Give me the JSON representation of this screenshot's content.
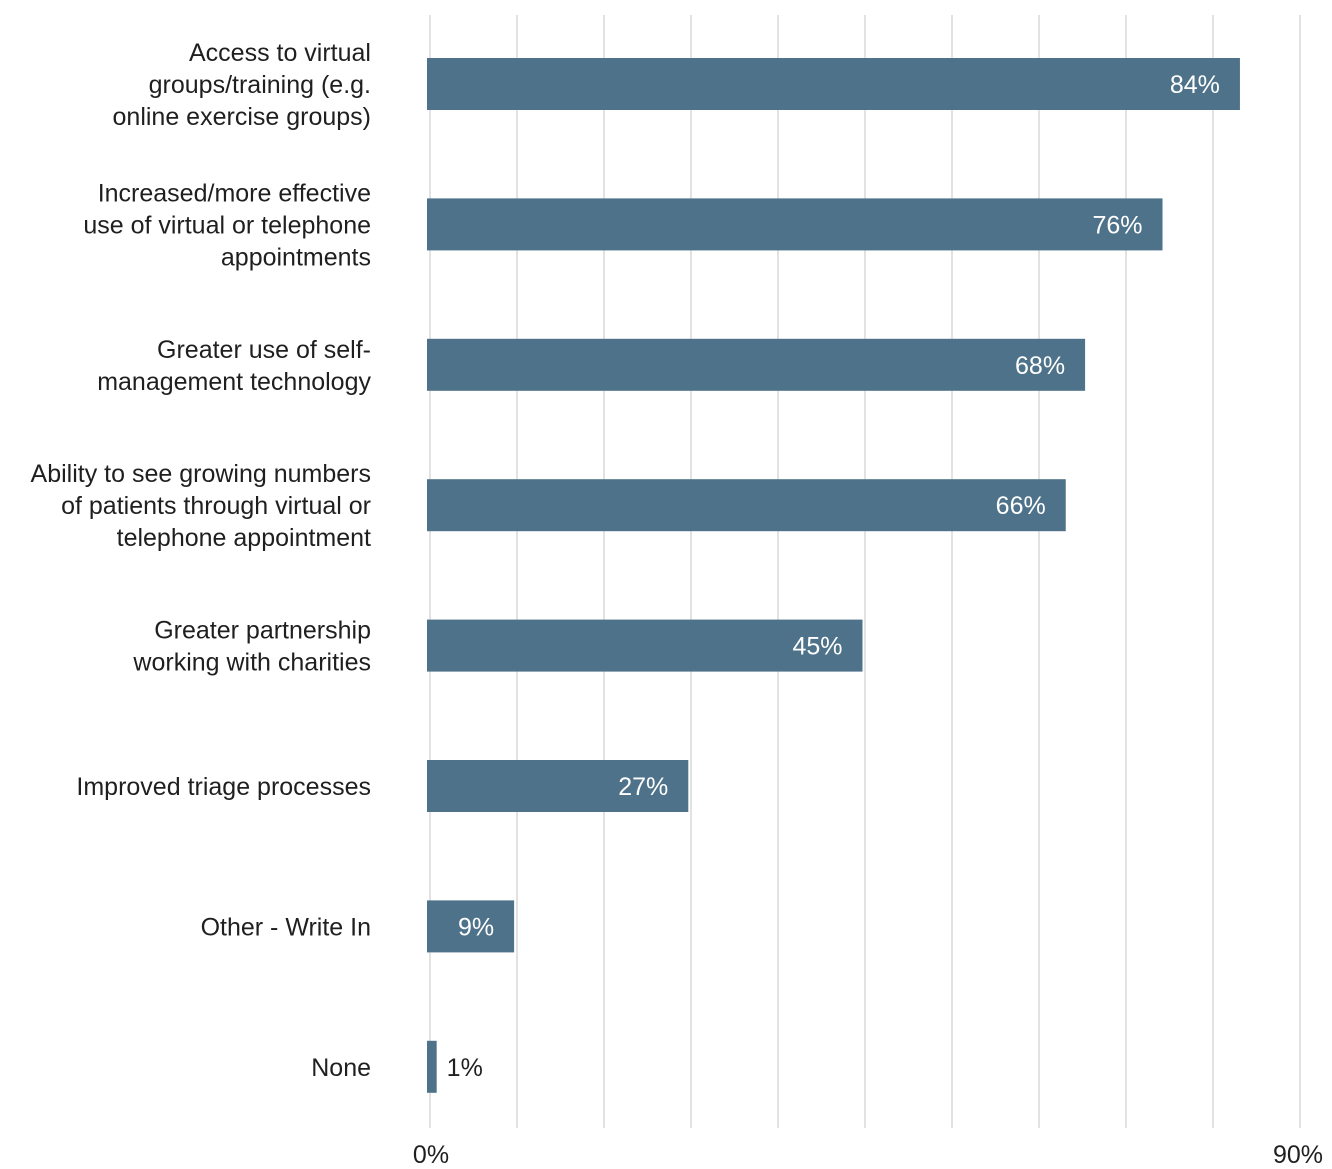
{
  "chart_data": {
    "type": "bar",
    "orientation": "horizontal",
    "categories": [
      [
        "Access to virtual",
        "groups/training (e.g.",
        "online exercise groups)"
      ],
      [
        "Increased/more effective",
        "use of virtual or telephone",
        "appointments"
      ],
      [
        "Greater use of self-",
        "management technology"
      ],
      [
        "Ability to see growing numbers",
        "of patients through virtual or",
        "telephone appointment"
      ],
      [
        "Greater partnership",
        "working with charities"
      ],
      [
        "Improved triage processes"
      ],
      [
        "Other - Write In"
      ],
      [
        "None"
      ]
    ],
    "values": [
      84,
      76,
      68,
      66,
      45,
      27,
      9,
      1
    ],
    "value_labels": [
      "84%",
      "76%",
      "68%",
      "66%",
      "45%",
      "27%",
      "9%",
      "1%"
    ],
    "xlim": [
      0,
      90
    ],
    "x_tick_labels": [
      "0%",
      "90%"
    ],
    "gridlines": 10,
    "grid": true,
    "colors": {
      "bar": "#4e7289",
      "grid": "#d9d9d9",
      "label_inside": "#ffffff",
      "label_outside": "#1f1f1f"
    }
  }
}
